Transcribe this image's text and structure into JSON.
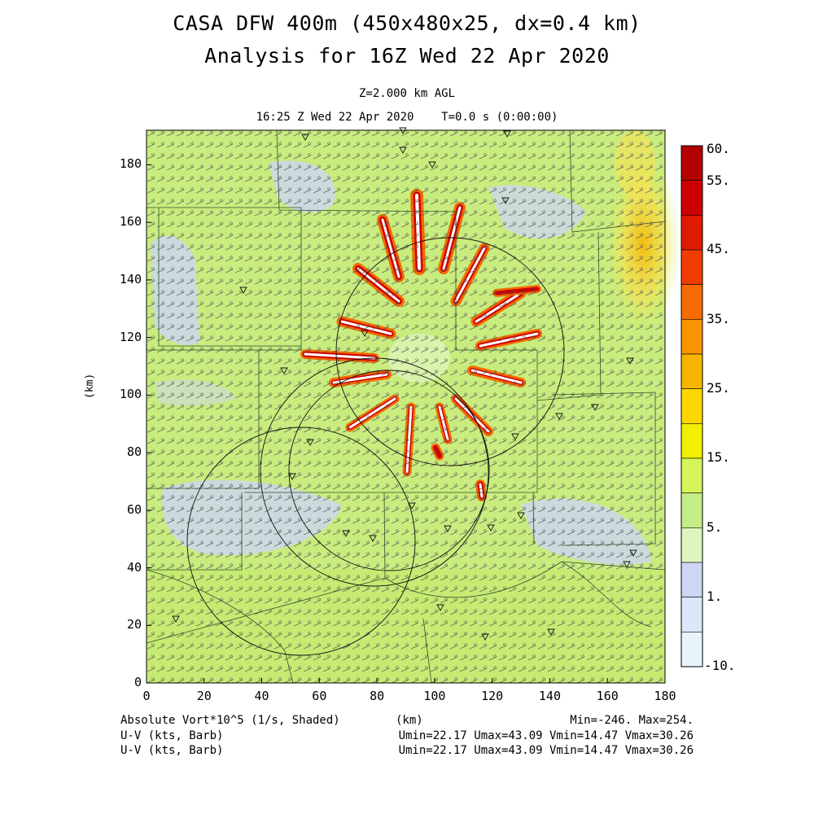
{
  "header": {
    "title_line1": "CASA DFW 400m (450x480x25, dx=0.4 km)",
    "title_line2": "Analysis for 16Z Wed 22 Apr 2020",
    "level": "Z=2.000 km AGL",
    "time": "16:25 Z Wed 22 Apr 2020    T=0.0 s (0:00:00)"
  },
  "axes": {
    "ylabel": "(km)",
    "xlabel": "(km)",
    "x_ticks": [
      "0",
      "20",
      "40",
      "60",
      "80",
      "100",
      "120",
      "140",
      "160",
      "180"
    ],
    "y_ticks": [
      "0",
      "20",
      "40",
      "60",
      "80",
      "100",
      "120",
      "140",
      "160",
      "180"
    ],
    "x_range": [
      0,
      180
    ],
    "y_range": [
      0,
      192
    ]
  },
  "colorbar": {
    "labels": [
      "60.",
      "55.",
      "45.",
      "35.",
      "25.",
      "15.",
      "5.",
      "1.",
      "-10."
    ],
    "colors": [
      "#b30000",
      "#cc0000",
      "#e01a00",
      "#f03c00",
      "#f56b00",
      "#f79400",
      "#f7b500",
      "#ffd500",
      "#f0f000",
      "#d5f55a",
      "#c5ed85",
      "#dff5c0",
      "#cdd6f5",
      "#dce8f8",
      "#e8f4fb"
    ]
  },
  "footer": {
    "left1": "Absolute Vort*10^5 (1/s, Shaded)",
    "center1": "(km)",
    "right1": "Min=-246. Max=254.",
    "left2": "U-V (kts, Barb)",
    "right2": "Umin=22.17 Umax=43.09 Vmin=14.47 Vmax=30.26",
    "left3": "U-V (kts, Barb)",
    "right3": "Umin=22.17 Umax=43.09 Vmin=14.47 Vmax=30.26"
  }
}
